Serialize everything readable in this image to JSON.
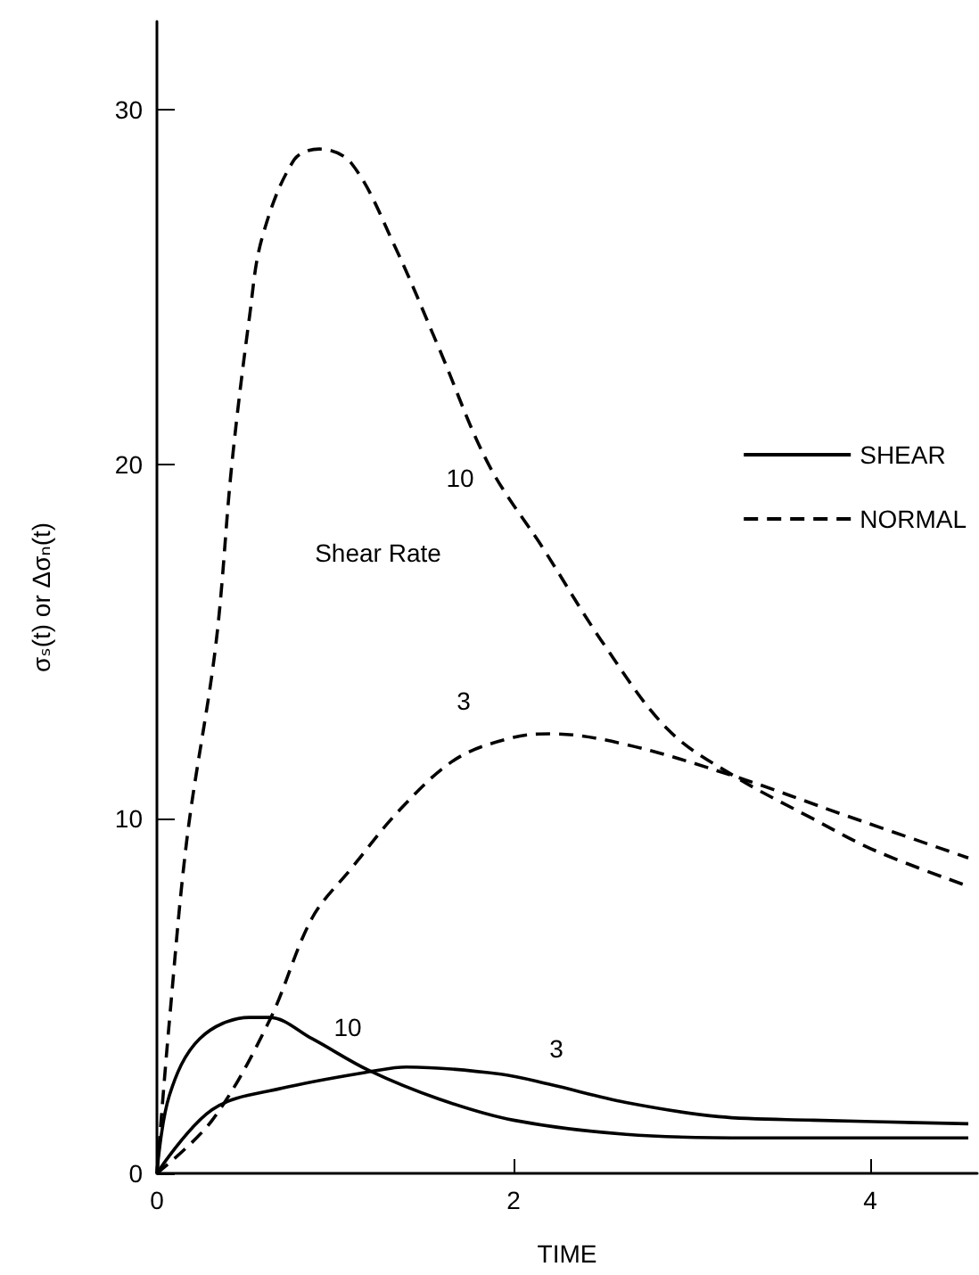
{
  "chart_data": {
    "type": "line",
    "xlabel": "TIME",
    "ylabel": "σₛ(t) or Δσₙ(t)",
    "xlim": [
      0,
      4.6
    ],
    "xticks": [
      0,
      2,
      4
    ],
    "ylim": [
      0,
      32.5
    ],
    "yticks": [
      0,
      10,
      20,
      30
    ],
    "grid": false,
    "legend": "right",
    "marker": "none",
    "series": [
      {
        "name": "SHEAR",
        "color": "#000000",
        "line_style": "solid",
        "x": [
          0,
          0.07,
          0.24,
          0.52,
          0.63,
          0.87,
          1.19,
          1.58,
          2.0,
          2.63,
          3.33,
          4.55
        ],
        "values": [
          0,
          2.2,
          3.8,
          4.4,
          4.4,
          3.8,
          2.9,
          2.1,
          1.5,
          1.1,
          1.0,
          1.0
        ]
      },
      {
        "color": "#000000",
        "line_style": "solid",
        "x": [
          0,
          0.31,
          0.7,
          1.23,
          1.4,
          1.93,
          2.21,
          2.63,
          3.15,
          3.68,
          4.55
        ],
        "values": [
          0,
          1.8,
          2.4,
          2.9,
          3.0,
          2.8,
          2.5,
          2.0,
          1.6,
          1.5,
          1.4
        ]
      },
      {
        "name": "NORMAL",
        "color": "#000000",
        "line_style": "dashed",
        "x": [
          0,
          0.07,
          0.17,
          0.33,
          0.42,
          0.52,
          0.59,
          0.77,
          0.91,
          1.09,
          1.33,
          1.58,
          1.86,
          2.17,
          2.51,
          2.87,
          3.24,
          3.68,
          4.03,
          4.55
        ],
        "values": [
          0,
          4.3,
          9.5,
          14.9,
          20.0,
          24.2,
          26.4,
          28.6,
          28.9,
          28.5,
          26.2,
          23.3,
          20.0,
          17.6,
          14.9,
          12.5,
          11.2,
          10.0,
          9.1,
          8.1
        ]
      },
      {
        "color": "#000000",
        "line_style": "dashed",
        "x": [
          0,
          0.31,
          0.63,
          0.87,
          1.09,
          1.37,
          1.68,
          2.0,
          2.21,
          2.63,
          3.24,
          3.86,
          4.55
        ],
        "values": [
          0,
          1.5,
          4.3,
          7.2,
          8.6,
          10.3,
          11.7,
          12.3,
          12.4,
          12.1,
          11.2,
          10.1,
          8.9
        ]
      }
    ],
    "annotations": [
      "10",
      "Shear Rate",
      "3",
      "10",
      "3"
    ]
  }
}
